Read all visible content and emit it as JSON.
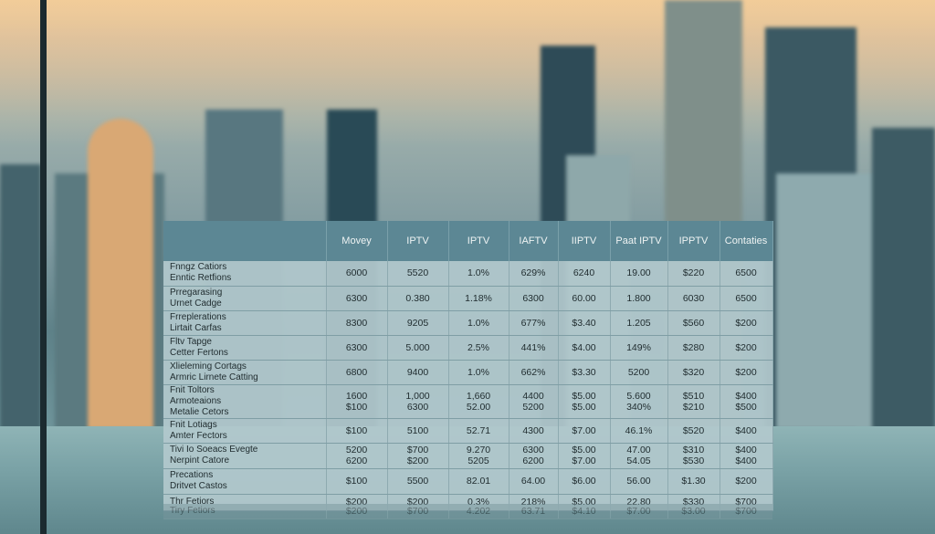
{
  "table": {
    "headers": [
      "",
      "Movey",
      "IPTV",
      "IPTV",
      "IAFTV",
      "IIPTV",
      "Paat IPTV",
      "IPPTV",
      "Contaties"
    ],
    "rows": [
      {
        "label": [
          "Fnngz Catiors",
          "Enntic Retfions"
        ],
        "cells": [
          [
            "6000"
          ],
          [
            "5520"
          ],
          [
            "1.0%"
          ],
          [
            "629%"
          ],
          [
            "6240"
          ],
          [
            "19.00"
          ],
          [
            "$220"
          ],
          [
            "6500"
          ]
        ]
      },
      {
        "label": [
          "Prregarasing",
          "Urnet Cadge"
        ],
        "cells": [
          [
            "6300"
          ],
          [
            "0.380"
          ],
          [
            "1.18%"
          ],
          [
            "6300"
          ],
          [
            "60.00"
          ],
          [
            "1.800"
          ],
          [
            "6030"
          ],
          [
            "6500"
          ]
        ]
      },
      {
        "label": [
          "Frreplerations",
          "Lirtait Carfas"
        ],
        "cells": [
          [
            "8300"
          ],
          [
            "9205"
          ],
          [
            "1.0%"
          ],
          [
            "677%"
          ],
          [
            "$3.40"
          ],
          [
            "1.205"
          ],
          [
            "$560"
          ],
          [
            "$200"
          ]
        ]
      },
      {
        "label": [
          "Fltv Tapge",
          "Cetter Fertons"
        ],
        "cells": [
          [
            "6300"
          ],
          [
            "5.000"
          ],
          [
            "2.5%"
          ],
          [
            "441%"
          ],
          [
            "$4.00"
          ],
          [
            "149%"
          ],
          [
            "$280"
          ],
          [
            "$200"
          ]
        ]
      },
      {
        "label": [
          "Xlieleming Cortags",
          "Armric Lirnete Catting"
        ],
        "cells": [
          [
            "6800"
          ],
          [
            "9400"
          ],
          [
            "1.0%"
          ],
          [
            "662%"
          ],
          [
            "$3.30"
          ],
          [
            "5200"
          ],
          [
            "$320"
          ],
          [
            "$200"
          ]
        ]
      },
      {
        "label": [
          "Fnit Toltors",
          "Armoteaions",
          "Metalie Cetors"
        ],
        "cells": [
          [
            "1600",
            "$100"
          ],
          [
            "1,000",
            "6300"
          ],
          [
            "1,660",
            "52.00"
          ],
          [
            "4400",
            "5200"
          ],
          [
            "$5.00",
            "$5.00"
          ],
          [
            "5.600",
            "340%"
          ],
          [
            "$510",
            "$210"
          ],
          [
            "$400",
            "$500"
          ]
        ]
      },
      {
        "label": [
          "Fnit Lotiags",
          "Amter Fectors"
        ],
        "cells": [
          [
            "$100"
          ],
          [
            "5100"
          ],
          [
            "52.71"
          ],
          [
            "4300"
          ],
          [
            "$7.00"
          ],
          [
            "46.1%"
          ],
          [
            "$520"
          ],
          [
            "$400"
          ]
        ]
      },
      {
        "label": [
          "Tivi Io Soeacs Evegte",
          "Nerpint Catore"
        ],
        "cells": [
          [
            "5200",
            "6200"
          ],
          [
            "$700",
            "$200"
          ],
          [
            "9.270",
            "5205"
          ],
          [
            "6300",
            "6200"
          ],
          [
            "$5.00",
            "$7.00"
          ],
          [
            "47.00",
            "54.05"
          ],
          [
            "$310",
            "$530"
          ],
          [
            "$400",
            "$400"
          ]
        ]
      },
      {
        "label": [
          "Precations",
          "Dritvet Castos"
        ],
        "cells": [
          [
            "$100"
          ],
          [
            "5500"
          ],
          [
            "82.01"
          ],
          [
            "64.00"
          ],
          [
            "$6.00"
          ],
          [
            "56.00"
          ],
          [
            "$1.30"
          ],
          [
            "$200"
          ]
        ]
      },
      {
        "label": [
          "Thr Fetiors"
        ],
        "cells": [
          [
            "$200"
          ],
          [
            "$200"
          ],
          [
            "0.3%"
          ],
          [
            "218%"
          ],
          [
            "$5.00"
          ],
          [
            "22.80"
          ],
          [
            "$330"
          ],
          [
            "$700"
          ]
        ]
      }
    ],
    "mirror_row": {
      "label": [
        "Tiry Fetiors"
      ],
      "cells": [
        [
          "$200"
        ],
        [
          "$700"
        ],
        [
          "4.202"
        ],
        [
          "63.71"
        ],
        [
          "$4.10"
        ],
        [
          "$7.00"
        ],
        [
          "$3.00"
        ],
        [
          "$700"
        ]
      ]
    }
  }
}
